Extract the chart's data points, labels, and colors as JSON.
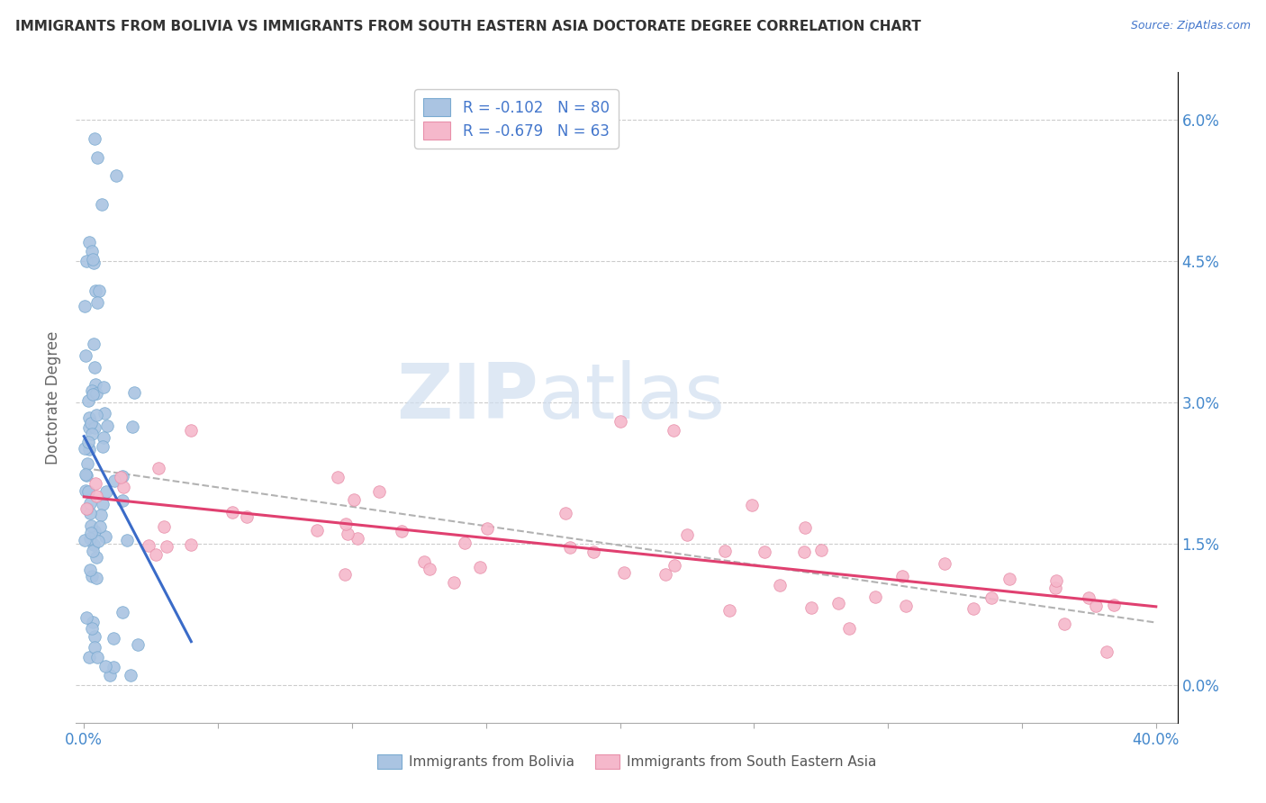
{
  "title": "IMMIGRANTS FROM BOLIVIA VS IMMIGRANTS FROM SOUTH EASTERN ASIA DOCTORATE DEGREE CORRELATION CHART",
  "source": "Source: ZipAtlas.com",
  "ylabel": "Doctorate Degree",
  "xlim": [
    -0.003,
    0.408
  ],
  "ylim": [
    -0.004,
    0.065
  ],
  "x_ticks": [
    0.0,
    0.05,
    0.1,
    0.15,
    0.2,
    0.25,
    0.3,
    0.35,
    0.4
  ],
  "y_ticks": [
    0.0,
    0.015,
    0.03,
    0.045,
    0.06
  ],
  "legend_labels": [
    "Immigrants from Bolivia",
    "Immigrants from South Eastern Asia"
  ],
  "legend_r": [
    -0.102,
    -0.679
  ],
  "legend_n": [
    80,
    63
  ],
  "blue_color": "#aac4e2",
  "pink_color": "#f5b8cb",
  "blue_edge_color": "#7aaad0",
  "pink_edge_color": "#e890aa",
  "blue_line_color": "#3a6bc8",
  "pink_line_color": "#e04070",
  "dash_line_color": "#aaaaaa",
  "watermark_zip": "ZIP",
  "watermark_atlas": "atlas",
  "title_color": "#333333",
  "source_color": "#4477cc",
  "right_tick_color": "#4488cc",
  "bottom_tick_color": "#4488cc",
  "grid_color": "#cccccc"
}
